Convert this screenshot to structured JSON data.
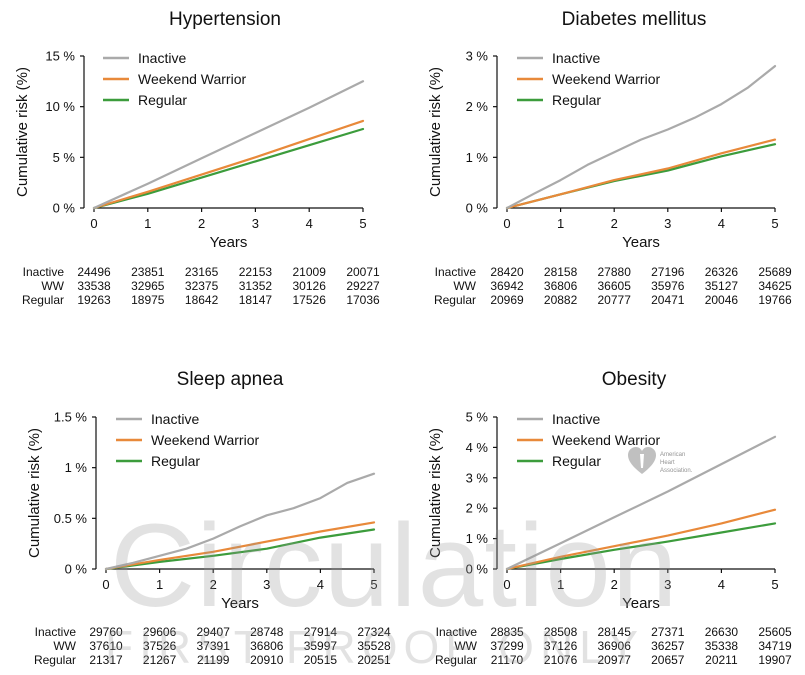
{
  "colors": {
    "inactive": "#aaaaaa",
    "ww": "#e8893a",
    "regular": "#3c9c3c",
    "axis": "#111111"
  },
  "watermark": {
    "main": "Circulation",
    "sub": "FIRST PROOF ONLY"
  },
  "logo": {
    "line1": "American",
    "line2": "Heart",
    "line3": "Association."
  },
  "chart_data": [
    {
      "type": "line",
      "title": "Hypertension",
      "xlabel": "Years",
      "ylabel": "Cumulative risk (%)",
      "xlim": [
        0,
        5
      ],
      "ylim": [
        0,
        15
      ],
      "xticks": [
        0,
        1,
        2,
        3,
        4,
        5
      ],
      "yticks": [
        0,
        5,
        10,
        15
      ],
      "ytick_labels": [
        "0 %",
        "5 %",
        "10 %",
        "15 %"
      ],
      "legend": [
        "Inactive",
        "Weekend Warrior",
        "Regular"
      ],
      "series": [
        {
          "name": "Inactive",
          "key": "inactive",
          "x": [
            0,
            1,
            2,
            3,
            4,
            5
          ],
          "values": [
            0,
            2.4,
            4.9,
            7.4,
            9.9,
            12.5
          ]
        },
        {
          "name": "Weekend Warrior",
          "key": "ww",
          "x": [
            0,
            1,
            2,
            3,
            4,
            5
          ],
          "values": [
            0,
            1.6,
            3.3,
            5.0,
            6.8,
            8.6
          ]
        },
        {
          "name": "Regular",
          "key": "regular",
          "x": [
            0,
            1,
            2,
            3,
            4,
            5
          ],
          "values": [
            0,
            1.4,
            3.0,
            4.6,
            6.2,
            7.8
          ]
        }
      ],
      "risk_table": {
        "labels": [
          "Inactive",
          "WW",
          "Regular"
        ],
        "rows": [
          [
            "24496",
            "23851",
            "23165",
            "22153",
            "21009",
            "20071"
          ],
          [
            "33538",
            "32965",
            "32375",
            "31352",
            "30126",
            "29227"
          ],
          [
            "19263",
            "18975",
            "18642",
            "18147",
            "17526",
            "17036"
          ]
        ]
      }
    },
    {
      "type": "line",
      "title": "Diabetes mellitus",
      "xlabel": "Years",
      "ylabel": "Cumulative risk (%)",
      "xlim": [
        0,
        5
      ],
      "ylim": [
        0,
        3
      ],
      "xticks": [
        0,
        1,
        2,
        3,
        4,
        5
      ],
      "yticks": [
        0,
        1,
        2,
        3
      ],
      "ytick_labels": [
        "0 %",
        "1 %",
        "2 %",
        "3 %"
      ],
      "legend": [
        "Inactive",
        "Weekend Warrior",
        "Regular"
      ],
      "series": [
        {
          "name": "Inactive",
          "key": "inactive",
          "x": [
            0,
            0.5,
            1,
            1.5,
            2,
            2.5,
            3,
            3.5,
            4,
            4.5,
            5
          ],
          "values": [
            0,
            0.28,
            0.55,
            0.85,
            1.1,
            1.35,
            1.55,
            1.78,
            2.05,
            2.38,
            2.8
          ]
        },
        {
          "name": "Weekend Warrior",
          "key": "ww",
          "x": [
            0,
            1,
            2,
            3,
            4,
            5
          ],
          "values": [
            0,
            0.27,
            0.55,
            0.78,
            1.08,
            1.35
          ]
        },
        {
          "name": "Regular",
          "key": "regular",
          "x": [
            0,
            1,
            2,
            3,
            4,
            5
          ],
          "values": [
            0,
            0.27,
            0.53,
            0.74,
            1.02,
            1.26
          ]
        }
      ],
      "risk_table": {
        "labels": [
          "Inactive",
          "WW",
          "Regular"
        ],
        "rows": [
          [
            "28420",
            "28158",
            "27880",
            "27196",
            "26326",
            "25689"
          ],
          [
            "36942",
            "36806",
            "36605",
            "35976",
            "35127",
            "34625"
          ],
          [
            "20969",
            "20882",
            "20777",
            "20471",
            "20046",
            "19766"
          ]
        ]
      }
    },
    {
      "type": "line",
      "title": "Sleep apnea",
      "xlabel": "Years",
      "ylabel": "Cumulative risk (%)",
      "xlim": [
        0,
        5
      ],
      "ylim": [
        0,
        1.5
      ],
      "xticks": [
        0,
        1,
        2,
        3,
        4,
        5
      ],
      "yticks": [
        0,
        0.5,
        1,
        1.5
      ],
      "ytick_labels": [
        "0 %",
        "0.5 %",
        "1 %",
        "1.5 %"
      ],
      "legend": [
        "Inactive",
        "Weekend Warrior",
        "Regular"
      ],
      "series": [
        {
          "name": "Inactive",
          "key": "inactive",
          "x": [
            0,
            0.5,
            1,
            1.5,
            2,
            2.5,
            3,
            3.5,
            4,
            4.5,
            5
          ],
          "values": [
            0,
            0.06,
            0.13,
            0.2,
            0.3,
            0.42,
            0.53,
            0.6,
            0.7,
            0.85,
            0.94
          ]
        },
        {
          "name": "Weekend Warrior",
          "key": "ww",
          "x": [
            0,
            1,
            2,
            3,
            4,
            5
          ],
          "values": [
            0,
            0.09,
            0.17,
            0.27,
            0.37,
            0.46
          ]
        },
        {
          "name": "Regular",
          "key": "regular",
          "x": [
            0,
            1,
            2,
            3,
            4,
            5
          ],
          "values": [
            0,
            0.07,
            0.13,
            0.2,
            0.31,
            0.39
          ]
        }
      ],
      "risk_table": {
        "labels": [
          "Inactive",
          "WW",
          "Regular"
        ],
        "rows": [
          [
            "29760",
            "29606",
            "29407",
            "28748",
            "27914",
            "27324"
          ],
          [
            "37610",
            "37526",
            "37391",
            "36806",
            "35997",
            "35528"
          ],
          [
            "21317",
            "21267",
            "21199",
            "20910",
            "20515",
            "20251"
          ]
        ]
      }
    },
    {
      "type": "line",
      "title": "Obesity",
      "xlabel": "Years",
      "ylabel": "Cumulative risk (%)",
      "xlim": [
        0,
        5
      ],
      "ylim": [
        0,
        5
      ],
      "xticks": [
        0,
        1,
        2,
        3,
        4,
        5
      ],
      "yticks": [
        0,
        1,
        2,
        3,
        4,
        5
      ],
      "ytick_labels": [
        "0 %",
        "1 %",
        "2 %",
        "3 %",
        "4 %",
        "5 %"
      ],
      "legend": [
        "Inactive",
        "Weekend Warrior",
        "Regular"
      ],
      "series": [
        {
          "name": "Inactive",
          "key": "inactive",
          "x": [
            0,
            1,
            2,
            3,
            4,
            5
          ],
          "values": [
            0,
            0.85,
            1.7,
            2.55,
            3.45,
            4.35
          ]
        },
        {
          "name": "Weekend Warrior",
          "key": "ww",
          "x": [
            0,
            1,
            2,
            3,
            4,
            5
          ],
          "values": [
            0,
            0.4,
            0.75,
            1.1,
            1.5,
            1.95
          ]
        },
        {
          "name": "Regular",
          "key": "regular",
          "x": [
            0,
            1,
            2,
            3,
            4,
            5
          ],
          "values": [
            0,
            0.33,
            0.63,
            0.9,
            1.2,
            1.5
          ]
        }
      ],
      "risk_table": {
        "labels": [
          "Inactive",
          "WW",
          "Regular"
        ],
        "rows": [
          [
            "28835",
            "28508",
            "28145",
            "27371",
            "26630",
            "25605"
          ],
          [
            "37299",
            "37126",
            "36906",
            "36257",
            "35338",
            "34719"
          ],
          [
            "21170",
            "21076",
            "20977",
            "20657",
            "20211",
            "19907"
          ]
        ]
      }
    }
  ]
}
